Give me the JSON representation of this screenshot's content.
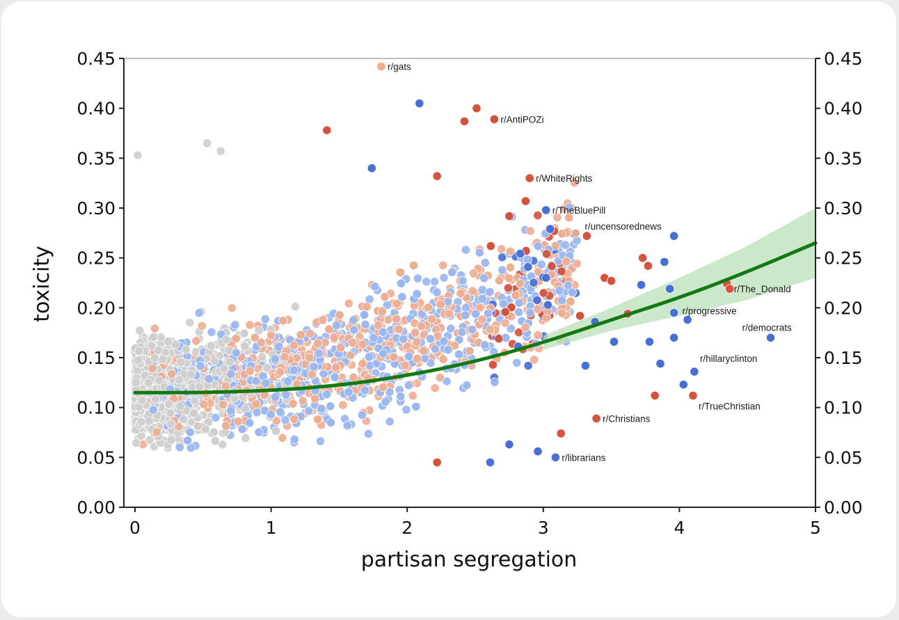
{
  "chart_data": {
    "type": "scatter",
    "title": "",
    "xlabel": "partisan segregation",
    "ylabel": "toxicity",
    "xlim": [
      0,
      5
    ],
    "ylim": [
      0,
      0.45
    ],
    "x_ticks": [
      "0",
      "1",
      "2",
      "3",
      "4",
      "5"
    ],
    "y_ticks": [
      "0.00",
      "0.05",
      "0.10",
      "0.15",
      "0.20",
      "0.25",
      "0.30",
      "0.35",
      "0.40",
      "0.45"
    ],
    "right_axis_ticks": true,
    "grid": false,
    "legend": "none",
    "colors": {
      "neutral": "#cfcfcf",
      "left_light": "#9bb7f0",
      "left_strong": "#4a6fd4",
      "right_light": "#eeae94",
      "right_strong": "#d4533f",
      "trend": "#137a13",
      "confidence_band": "#b9e0b9"
    },
    "trend_line": {
      "name": "fit",
      "points": [
        [
          0,
          0.115
        ],
        [
          0.5,
          0.115
        ],
        [
          1,
          0.117
        ],
        [
          1.5,
          0.122
        ],
        [
          2,
          0.132
        ],
        [
          2.5,
          0.146
        ],
        [
          3,
          0.165
        ],
        [
          3.5,
          0.188
        ],
        [
          4,
          0.21
        ],
        [
          4.5,
          0.236
        ],
        [
          5,
          0.265
        ]
      ],
      "band_low": [
        [
          3,
          0.158
        ],
        [
          3.5,
          0.177
        ],
        [
          4,
          0.192
        ],
        [
          4.5,
          0.208
        ],
        [
          5,
          0.23
        ]
      ],
      "band_high": [
        [
          3,
          0.172
        ],
        [
          3.5,
          0.2
        ],
        [
          4,
          0.23
        ],
        [
          4.5,
          0.262
        ],
        [
          5,
          0.3
        ]
      ]
    },
    "annotated_points": [
      {
        "label": "r/gats",
        "x": 1.81,
        "y": 0.442,
        "lean": "right"
      },
      {
        "label": "r/AntiPOZi",
        "x": 2.64,
        "y": 0.389,
        "lean": "right"
      },
      {
        "label": "r/WhiteRights",
        "x": 2.9,
        "y": 0.33,
        "lean": "right"
      },
      {
        "label": "r/TheBluePill",
        "x": 3.02,
        "y": 0.298,
        "lean": "left"
      },
      {
        "label": "r/uncensorednews",
        "x": 3.32,
        "y": 0.272,
        "lean": "right"
      },
      {
        "label": "r/The_Donald",
        "x": 4.37,
        "y": 0.219,
        "lean": "right"
      },
      {
        "label": "r/progressive",
        "x": 3.96,
        "y": 0.195,
        "lean": "left"
      },
      {
        "label": "r/democrats",
        "x": 4.67,
        "y": 0.17,
        "lean": "left"
      },
      {
        "label": "r/hillaryclinton",
        "x": 4.11,
        "y": 0.136,
        "lean": "left"
      },
      {
        "label": "r/TrueChristian",
        "x": 4.1,
        "y": 0.112,
        "lean": "right"
      },
      {
        "label": "r/Christians",
        "x": 3.39,
        "y": 0.089,
        "lean": "right"
      },
      {
        "label": "r/librarians",
        "x": 3.09,
        "y": 0.05,
        "lean": "left"
      }
    ],
    "extra_points": [
      [
        2.09,
        0.405,
        "L"
      ],
      [
        2.51,
        0.4,
        "R"
      ],
      [
        2.42,
        0.387,
        "R"
      ],
      [
        1.41,
        0.378,
        "R"
      ],
      [
        0.53,
        0.365,
        "N"
      ],
      [
        0.63,
        0.357,
        "N"
      ],
      [
        0.02,
        0.353,
        "N"
      ],
      [
        2.22,
        0.332,
        "R"
      ],
      [
        1.74,
        0.34,
        "L"
      ],
      [
        2.87,
        0.307,
        "R"
      ],
      [
        2.75,
        0.292,
        "R"
      ],
      [
        3.08,
        0.277,
        "R"
      ],
      [
        3.96,
        0.272,
        "L"
      ],
      [
        3.05,
        0.279,
        "L"
      ],
      [
        3.73,
        0.25,
        "R"
      ],
      [
        3.77,
        0.242,
        "R"
      ],
      [
        3.89,
        0.246,
        "L"
      ],
      [
        3.45,
        0.23,
        "R"
      ],
      [
        3.5,
        0.227,
        "R"
      ],
      [
        3.72,
        0.223,
        "L"
      ],
      [
        3.93,
        0.219,
        "L"
      ],
      [
        4.35,
        0.224,
        "R"
      ],
      [
        3.62,
        0.194,
        "R"
      ],
      [
        3.27,
        0.192,
        "R"
      ],
      [
        3.38,
        0.186,
        "L"
      ],
      [
        4.06,
        0.188,
        "L"
      ],
      [
        3.96,
        0.17,
        "L"
      ],
      [
        3.78,
        0.166,
        "L"
      ],
      [
        3.52,
        0.166,
        "L"
      ],
      [
        3.86,
        0.144,
        "L"
      ],
      [
        3.31,
        0.142,
        "L"
      ],
      [
        4.03,
        0.123,
        "L"
      ],
      [
        3.82,
        0.112,
        "R"
      ],
      [
        3.13,
        0.074,
        "R"
      ],
      [
        2.96,
        0.056,
        "L"
      ],
      [
        2.75,
        0.063,
        "L"
      ],
      [
        2.61,
        0.045,
        "L"
      ],
      [
        2.22,
        0.045,
        "R"
      ]
    ],
    "scatter_cloud": {
      "description_count": 2600,
      "neutral_range_x": [
        0,
        1.3
      ],
      "mixed_range_x": [
        0.4,
        3.2
      ]
    }
  }
}
